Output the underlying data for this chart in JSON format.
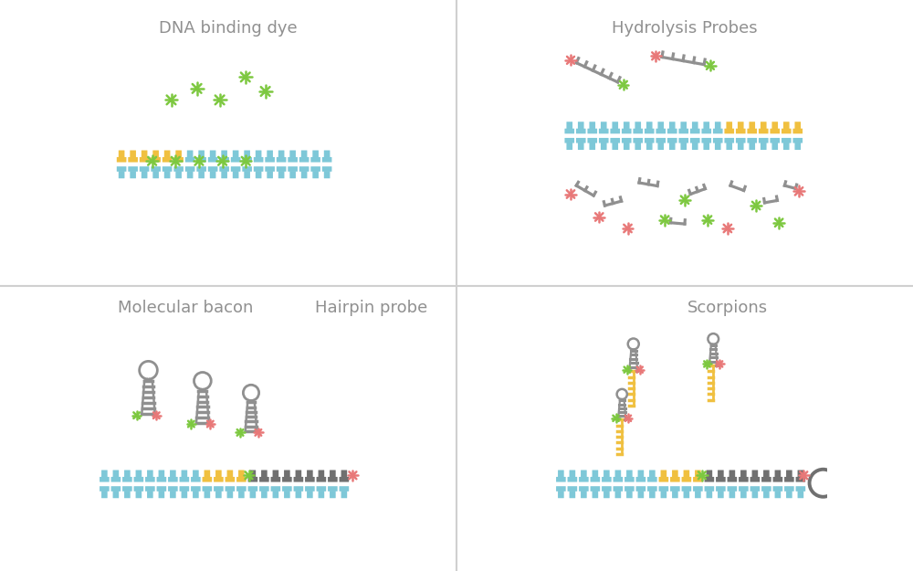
{
  "title_dna": "DNA binding dye",
  "title_hydro": "Hydrolysis Probes",
  "title_hairpin": "Hairpin probe",
  "title_mol": "Molecular bacon",
  "title_scorp": "Scorpions",
  "color_blue": "#7EC8D8",
  "color_yellow": "#F0C040",
  "color_gray": "#707070",
  "color_darkgray": "#909090",
  "color_green": "#7DC840",
  "color_pink": "#E87878",
  "color_divider": "#D0D0D0",
  "color_text": "#909090",
  "color_white": "#FFFFFF"
}
